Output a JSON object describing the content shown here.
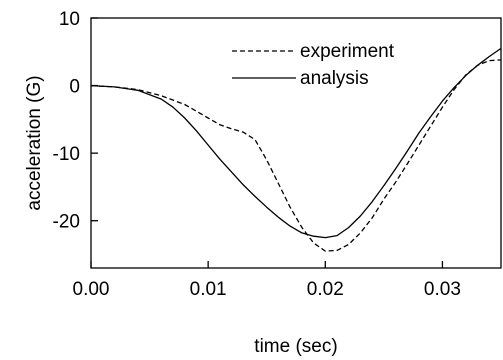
{
  "chart_data": {
    "type": "line",
    "title": "",
    "xlabel": "time (sec)",
    "ylabel": "acceleration (G)",
    "xlim": [
      0,
      0.035
    ],
    "ylim": [
      -27,
      10
    ],
    "xticks": [
      0.0,
      0.01,
      0.02,
      0.03
    ],
    "xtick_labels": [
      "0.00",
      "0.01",
      "0.02",
      "0.03"
    ],
    "yticks": [
      10,
      0,
      -10,
      -20
    ],
    "ytick_labels": [
      "10",
      "0",
      "-10",
      "-20"
    ],
    "grid": false,
    "legend_position": "top-right",
    "series": [
      {
        "name": "experiment",
        "style": "dashed",
        "color": "#000000",
        "x": [
          0.0,
          0.002,
          0.004,
          0.006,
          0.008,
          0.01,
          0.011,
          0.012,
          0.013,
          0.014,
          0.015,
          0.016,
          0.017,
          0.018,
          0.019,
          0.02,
          0.021,
          0.022,
          0.023,
          0.024,
          0.025,
          0.026,
          0.027,
          0.028,
          0.029,
          0.03,
          0.031,
          0.032,
          0.033,
          0.034,
          0.035
        ],
        "y": [
          0.0,
          -0.2,
          -0.6,
          -1.5,
          -2.8,
          -4.8,
          -5.8,
          -6.4,
          -6.9,
          -8.0,
          -11.0,
          -14.5,
          -18.0,
          -21.0,
          -23.3,
          -24.5,
          -24.4,
          -23.5,
          -21.8,
          -19.6,
          -16.8,
          -14.3,
          -11.6,
          -8.8,
          -6.0,
          -3.2,
          -0.6,
          1.6,
          3.0,
          3.7,
          3.8
        ]
      },
      {
        "name": "analysis",
        "style": "solid",
        "color": "#000000",
        "x": [
          0.0,
          0.002,
          0.004,
          0.006,
          0.007,
          0.008,
          0.009,
          0.01,
          0.011,
          0.012,
          0.013,
          0.014,
          0.015,
          0.016,
          0.017,
          0.018,
          0.019,
          0.02,
          0.021,
          0.022,
          0.023,
          0.024,
          0.025,
          0.026,
          0.027,
          0.028,
          0.029,
          0.03,
          0.031,
          0.032,
          0.033,
          0.034,
          0.035
        ],
        "y": [
          0.0,
          -0.2,
          -0.7,
          -2.0,
          -3.2,
          -4.8,
          -6.7,
          -8.8,
          -10.9,
          -12.8,
          -14.7,
          -16.4,
          -18.0,
          -19.5,
          -20.8,
          -21.8,
          -22.3,
          -22.5,
          -22.2,
          -21.0,
          -19.3,
          -17.2,
          -14.8,
          -12.3,
          -9.7,
          -7.0,
          -4.6,
          -2.3,
          -0.3,
          1.5,
          3.0,
          4.3,
          5.5
        ]
      }
    ]
  }
}
